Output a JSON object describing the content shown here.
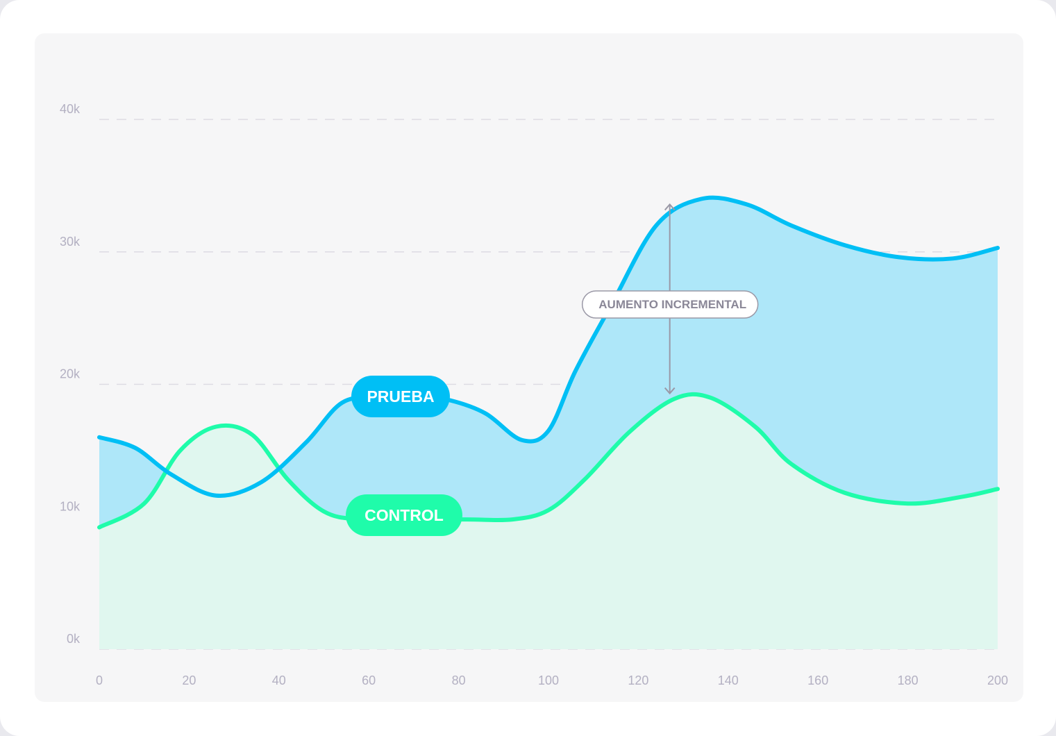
{
  "chart_data": {
    "type": "area",
    "x": [
      0,
      20,
      40,
      60,
      80,
      100,
      120,
      140,
      160,
      180,
      200
    ],
    "xlim": [
      0,
      200
    ],
    "ylim": [
      0,
      40000
    ],
    "x_ticks": [
      "0",
      "20",
      "40",
      "60",
      "80",
      "100",
      "120",
      "140",
      "160",
      "180",
      "200"
    ],
    "y_ticks": [
      "0k",
      "10k",
      "20k",
      "30k",
      "40k"
    ],
    "y_tick_values": [
      0,
      10000,
      20000,
      30000,
      40000
    ],
    "grid": true,
    "series": [
      {
        "name": "PRUEBA",
        "color": "#00bff5",
        "fill": "#aee7f9",
        "points": [
          [
            0,
            16000
          ],
          [
            8,
            15200
          ],
          [
            16,
            13200
          ],
          [
            26,
            11600
          ],
          [
            36,
            12600
          ],
          [
            46,
            15600
          ],
          [
            54,
            18600
          ],
          [
            62,
            19000
          ],
          [
            72,
            19000
          ],
          [
            78,
            18800
          ],
          [
            86,
            17800
          ],
          [
            94,
            15800
          ],
          [
            100,
            16500
          ],
          [
            106,
            21000
          ],
          [
            114,
            26000
          ],
          [
            124,
            32000
          ],
          [
            134,
            34000
          ],
          [
            144,
            33600
          ],
          [
            154,
            32000
          ],
          [
            166,
            30500
          ],
          [
            178,
            29600
          ],
          [
            190,
            29500
          ],
          [
            200,
            30300
          ]
        ]
      },
      {
        "name": "CONTROL",
        "color": "#1ffcaa",
        "fill": "#e0f7ef",
        "points": [
          [
            0,
            9200
          ],
          [
            10,
            11000
          ],
          [
            18,
            15000
          ],
          [
            26,
            16800
          ],
          [
            34,
            16200
          ],
          [
            42,
            12800
          ],
          [
            50,
            10400
          ],
          [
            58,
            9800
          ],
          [
            70,
            9800
          ],
          [
            82,
            9800
          ],
          [
            92,
            9800
          ],
          [
            100,
            10500
          ],
          [
            108,
            12800
          ],
          [
            118,
            16400
          ],
          [
            128,
            18900
          ],
          [
            136,
            19000
          ],
          [
            146,
            16800
          ],
          [
            154,
            14000
          ],
          [
            166,
            11800
          ],
          [
            180,
            11000
          ],
          [
            192,
            11500
          ],
          [
            200,
            12100
          ]
        ]
      }
    ],
    "annotation": {
      "label": "AUMENTO INCREMENTAL",
      "x": 127,
      "y_top": 34000,
      "y_bottom": 19000
    }
  },
  "labels": {
    "prueba": "PRUEBA",
    "control": "CONTROL",
    "annotation": "AUMENTO INCREMENTAL"
  }
}
